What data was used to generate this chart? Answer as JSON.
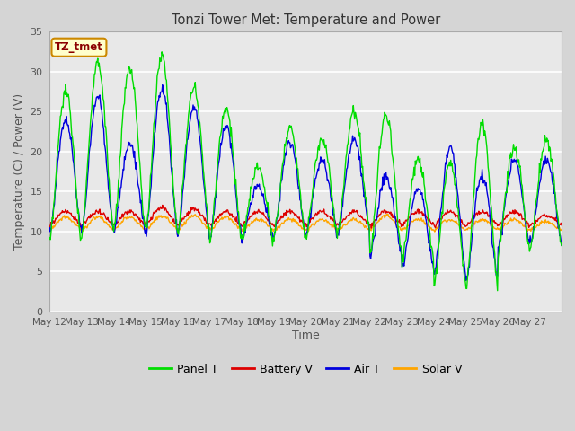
{
  "title": "Tonzi Tower Met: Temperature and Power",
  "xlabel": "Time",
  "ylabel": "Temperature (C) / Power (V)",
  "annotation_text": "TZ_tmet",
  "annotation_color": "#8b0000",
  "annotation_bg": "#ffffcc",
  "annotation_border": "#cc8800",
  "ylim": [
    0,
    35
  ],
  "yticks": [
    0,
    5,
    10,
    15,
    20,
    25,
    30,
    35
  ],
  "legend_labels": [
    "Panel T",
    "Battery V",
    "Air T",
    "Solar V"
  ],
  "legend_colors": [
    "#00dd00",
    "#dd0000",
    "#0000dd",
    "#ffa500"
  ],
  "x_tick_labels": [
    "May 12",
    "May 13",
    "May 14",
    "May 15",
    "May 16",
    "May 17",
    "May 18",
    "May 19",
    "May 20",
    "May 21",
    "May 22",
    "May 23",
    "May 24",
    "May 25",
    "May 26",
    "May 27"
  ],
  "panel_peaks": [
    27.5,
    31.2,
    30.3,
    32.0,
    28.0,
    25.5,
    18.2,
    23.0,
    21.5,
    25.0,
    24.7,
    19.0,
    18.8,
    23.5,
    20.5,
    21.5
  ],
  "panel_troughs": [
    8.5,
    9.8,
    10.0,
    9.8,
    9.8,
    8.8,
    8.8,
    9.5,
    9.5,
    10.0,
    7.0,
    6.5,
    3.5,
    3.0,
    7.5,
    8.0
  ],
  "air_peaks": [
    24.0,
    26.8,
    21.0,
    27.8,
    25.5,
    23.2,
    15.8,
    21.2,
    18.8,
    21.5,
    16.8,
    15.5,
    20.5,
    17.2,
    19.0,
    19.0
  ],
  "air_troughs": [
    9.8,
    10.0,
    10.0,
    9.8,
    9.5,
    9.0,
    9.0,
    9.5,
    9.5,
    10.0,
    7.0,
    5.5,
    4.5,
    3.8,
    8.0,
    8.5
  ],
  "battery_peaks": [
    12.5,
    12.5,
    12.5,
    13.0,
    12.8,
    12.5,
    12.5,
    12.5,
    12.5,
    12.5,
    12.5,
    12.5,
    12.5,
    12.5,
    12.5,
    12.0
  ],
  "battery_base": 10.8,
  "solar_peaks": [
    11.8,
    11.8,
    11.8,
    12.0,
    12.0,
    11.8,
    11.5,
    11.5,
    11.5,
    11.5,
    12.0,
    11.5,
    11.5,
    11.5,
    11.5,
    11.2
  ],
  "solar_base": 10.2
}
